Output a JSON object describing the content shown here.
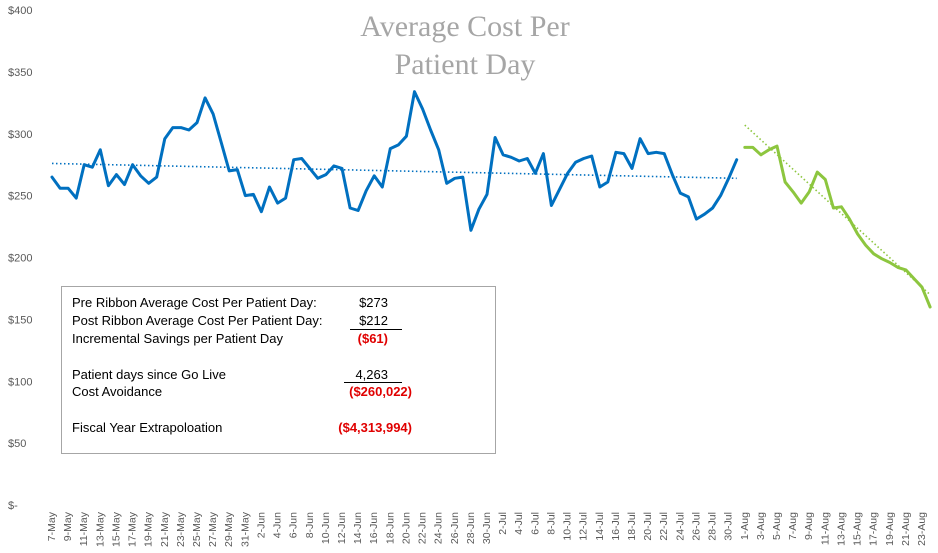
{
  "chart_data": {
    "type": "line",
    "title": "Average Cost Per Patient Day",
    "title_lines": [
      "Average Cost Per",
      "Patient Day"
    ],
    "ylim": [
      0,
      400
    ],
    "yticks": [
      0,
      50,
      100,
      150,
      200,
      250,
      300,
      350,
      400
    ],
    "ytick_labels": [
      "$-",
      "$50",
      "$100",
      "$150",
      "$200",
      "$250",
      "$300",
      "$350",
      "$400"
    ],
    "x_tick_labels": [
      "7-May",
      "9-May",
      "11-May",
      "13-May",
      "15-May",
      "17-May",
      "19-May",
      "21-May",
      "23-May",
      "25-May",
      "27-May",
      "29-May",
      "31-May",
      "2-Jun",
      "4-Jun",
      "6-Jun",
      "8-Jun",
      "10-Jun",
      "12-Jun",
      "14-Jun",
      "16-Jun",
      "18-Jun",
      "20-Jun",
      "22-Jun",
      "24-Jun",
      "26-Jun",
      "28-Jun",
      "30-Jun",
      "2-Jul",
      "4-Jul",
      "6-Jul",
      "8-Jul",
      "10-Jul",
      "12-Jul",
      "14-Jul",
      "16-Jul",
      "18-Jul",
      "20-Jul",
      "22-Jul",
      "24-Jul",
      "26-Jul",
      "28-Jul",
      "30-Jul",
      "1-Aug",
      "3-Aug",
      "5-Aug",
      "7-Aug",
      "9-Aug",
      "11-Aug",
      "13-Aug",
      "15-Aug",
      "17-Aug",
      "19-Aug",
      "21-Aug",
      "23-Aug"
    ],
    "grid": false,
    "series": [
      {
        "role": "pre",
        "color": "#0070c0",
        "start_label": "7-May",
        "values": [
          265,
          256,
          256,
          248,
          275,
          273,
          287,
          258,
          267,
          259,
          275,
          266,
          260,
          265,
          296,
          305,
          305,
          303,
          309,
          329,
          316,
          293,
          270,
          271,
          250,
          251,
          237,
          257,
          244,
          248,
          279,
          280,
          272,
          264,
          267,
          274,
          272,
          240,
          238,
          254,
          266,
          257,
          288,
          291,
          298,
          334,
          320,
          303,
          287,
          260,
          264,
          265,
          222,
          239,
          251,
          297,
          283,
          281,
          278,
          280,
          268,
          284,
          242,
          255,
          268,
          277,
          280,
          282,
          257,
          261,
          285,
          284,
          272,
          296,
          284,
          285,
          284,
          267,
          252,
          249,
          231,
          235,
          240,
          250,
          264,
          279
        ]
      },
      {
        "role": "post",
        "color": "#8dc63f",
        "start_label": "1-Aug",
        "values": [
          289,
          289,
          283,
          287,
          290,
          261,
          253,
          244,
          253,
          269,
          263,
          240,
          241,
          231,
          219,
          210,
          203,
          199,
          196,
          192,
          190,
          183,
          176,
          160
        ]
      }
    ],
    "trendlines": [
      {
        "role": "pre",
        "color": "#0070c0",
        "style": "dotted",
        "start_value": 276,
        "end_value": 264
      },
      {
        "role": "post",
        "color": "#8dc63f",
        "style": "dotted",
        "start_value": 307,
        "end_value": 170
      }
    ]
  },
  "summary": {
    "pre_label": "Pre Ribbon Average Cost Per Patient Day:",
    "pre_value": "$273",
    "post_label": "Post Ribbon Average Cost Per Patient Day:",
    "post_value": "$212",
    "savings_label": "Incremental Savings per Patient Day",
    "savings_value": "($61)",
    "days_label": "Patient days since Go Live",
    "days_value": "4,263",
    "avoidance_label": "Cost Avoidance",
    "avoidance_value": "($260,022)",
    "fy_label": "Fiscal Year Extrapoloation",
    "fy_value": "($4,313,994)"
  }
}
